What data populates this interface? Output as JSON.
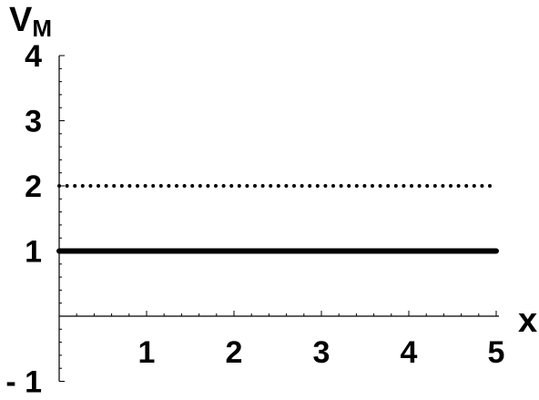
{
  "chart_data": {
    "type": "line",
    "ylabel": "V",
    "ylabel_subscript": "M",
    "xlabel": "x",
    "xlim": [
      0,
      5
    ],
    "ylim": [
      -1,
      4
    ],
    "x_ticks": [
      1,
      2,
      3,
      4,
      5
    ],
    "x_tick_labels": [
      "1",
      "2",
      "3",
      "4",
      "5"
    ],
    "y_ticks": [
      4,
      3,
      2,
      1,
      -1
    ],
    "y_tick_labels": [
      "4",
      "3",
      "2",
      "1",
      "- 1"
    ],
    "grid": false,
    "series": [
      {
        "style": "dotted",
        "color": "#000000",
        "x": [
          0,
          5
        ],
        "y": [
          2,
          2
        ]
      },
      {
        "style": "solid",
        "color": "#000000",
        "x": [
          0,
          5
        ],
        "y": [
          1,
          1
        ]
      }
    ]
  }
}
